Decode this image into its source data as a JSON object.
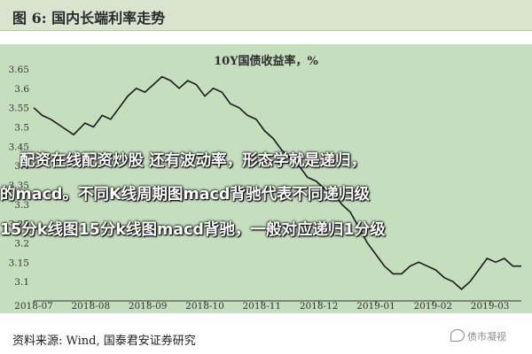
{
  "header": {
    "title": "图 6:  国内长端利率走势"
  },
  "source": "资料来源:  Wind,  国泰君安证券研究",
  "watermark": "债市凝视",
  "overlay_lines": [
    "配资在线配资炒股 还有波动率，形态学就是递归，",
    "的macd。不同K线周期图macd背驰代表不同递归级",
    "15分k线图15分k线图macd背驰，一般对应递归1分级"
  ],
  "chart_data": {
    "type": "line",
    "title": "10Y国债收益率，%",
    "ylim": [
      3.05,
      3.65
    ],
    "y_ticks": [
      3.1,
      3.15,
      3.2,
      3.25,
      3.3,
      3.35,
      3.4,
      3.45,
      3.5,
      3.55,
      3.6,
      3.65
    ],
    "y_tick_labels": [
      "3.1",
      "3.15",
      "3.2",
      "3.25",
      "3.3",
      "3.35",
      "3.4",
      "3.45",
      "3.5",
      "3.55",
      "3.6",
      "3.65"
    ],
    "x_tick_labels": [
      "2018-07",
      "2018-08",
      "2018-09",
      "2018-10",
      "2018-11",
      "2018-12",
      "2019-01",
      "2019-02",
      "2019-03"
    ],
    "x_range": [
      0,
      8.55
    ],
    "line_color": "#1a1a1a",
    "series": [
      {
        "x": [
          0.0,
          0.15,
          0.3,
          0.5,
          0.7,
          0.9,
          1.05,
          1.2,
          1.35,
          1.5,
          1.65,
          1.8,
          1.95,
          2.1,
          2.25,
          2.4,
          2.55,
          2.7,
          2.85,
          3.0,
          3.15,
          3.3,
          3.45,
          3.6,
          3.75,
          3.9,
          4.05,
          4.2,
          4.35,
          4.5,
          4.65,
          4.8,
          4.95,
          5.1,
          5.25,
          5.4,
          5.55,
          5.7,
          5.85,
          6.0,
          6.15,
          6.3,
          6.45,
          6.6,
          6.75,
          6.9,
          7.05,
          7.2,
          7.35,
          7.5,
          7.65,
          7.8,
          7.95,
          8.1,
          8.25,
          8.4,
          8.55
        ],
        "values": [
          3.55,
          3.53,
          3.52,
          3.5,
          3.48,
          3.51,
          3.5,
          3.53,
          3.52,
          3.55,
          3.58,
          3.6,
          3.59,
          3.61,
          3.63,
          3.62,
          3.6,
          3.62,
          3.61,
          3.58,
          3.6,
          3.59,
          3.56,
          3.55,
          3.53,
          3.52,
          3.49,
          3.47,
          3.44,
          3.42,
          3.4,
          3.37,
          3.36,
          3.34,
          3.33,
          3.3,
          3.28,
          3.24,
          3.2,
          3.17,
          3.14,
          3.12,
          3.12,
          3.14,
          3.15,
          3.14,
          3.13,
          3.11,
          3.1,
          3.08,
          3.1,
          3.13,
          3.16,
          3.15,
          3.16,
          3.14,
          3.14
        ]
      }
    ]
  }
}
